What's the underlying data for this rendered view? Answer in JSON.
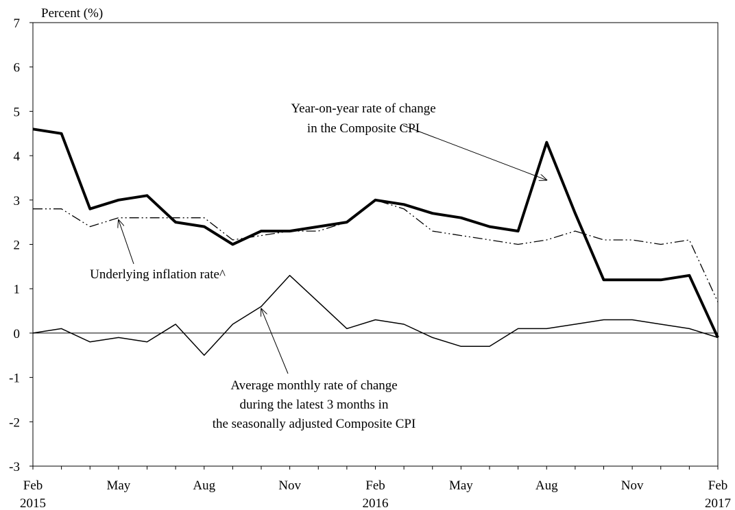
{
  "chart_data": {
    "type": "line",
    "ylabel": "Percent (%)",
    "ylim": [
      -3,
      7
    ],
    "yticks": [
      -3,
      -2,
      -1,
      0,
      1,
      2,
      3,
      4,
      5,
      6,
      7
    ],
    "grid": false,
    "x": [
      "Feb 2015",
      "Mar 2015",
      "Apr 2015",
      "May 2015",
      "Jun 2015",
      "Jul 2015",
      "Aug 2015",
      "Sep 2015",
      "Oct 2015",
      "Nov 2015",
      "Dec 2015",
      "Jan 2016",
      "Feb 2016",
      "Mar 2016",
      "Apr 2016",
      "May 2016",
      "Jun 2016",
      "Jul 2016",
      "Aug 2016",
      "Sep 2016",
      "Oct 2016",
      "Nov 2016",
      "Dec 2016",
      "Jan 2017",
      "Feb 2017"
    ],
    "xtick_labels": [
      {
        "index": 0,
        "month": "Feb",
        "year": "2015"
      },
      {
        "index": 3,
        "month": "May",
        "year": ""
      },
      {
        "index": 6,
        "month": "Aug",
        "year": ""
      },
      {
        "index": 9,
        "month": "Nov",
        "year": ""
      },
      {
        "index": 12,
        "month": "Feb",
        "year": "2016"
      },
      {
        "index": 15,
        "month": "May",
        "year": ""
      },
      {
        "index": 18,
        "month": "Aug",
        "year": ""
      },
      {
        "index": 21,
        "month": "Nov",
        "year": ""
      },
      {
        "index": 24,
        "month": "Feb",
        "year": "2017"
      }
    ],
    "series": [
      {
        "key": "composite",
        "values": [
          4.6,
          4.5,
          2.8,
          3.0,
          3.1,
          2.5,
          2.4,
          2.0,
          2.3,
          2.3,
          2.4,
          2.5,
          3.0,
          2.9,
          2.7,
          2.6,
          2.4,
          2.3,
          4.3,
          2.7,
          1.2,
          1.2,
          1.2,
          1.3,
          -0.1
        ],
        "style": "thick-solid"
      },
      {
        "key": "underlying",
        "values": [
          2.8,
          2.8,
          2.4,
          2.6,
          2.6,
          2.6,
          2.6,
          2.1,
          2.2,
          2.3,
          2.3,
          2.5,
          3.0,
          2.8,
          2.3,
          2.2,
          2.1,
          2.0,
          2.1,
          2.3,
          2.1,
          2.1,
          2.0,
          2.1,
          0.7
        ],
        "style": "dash-dot-dot"
      },
      {
        "key": "monthly",
        "values": [
          0.0,
          0.1,
          -0.2,
          -0.1,
          -0.2,
          0.2,
          -0.5,
          0.2,
          0.6,
          1.3,
          0.7,
          0.1,
          0.3,
          0.2,
          -0.1,
          -0.3,
          -0.3,
          0.1,
          0.1,
          0.2,
          0.3,
          0.3,
          0.2,
          0.1,
          -0.1
        ],
        "style": "thin-solid"
      }
    ],
    "annotations": [
      {
        "key": "composite",
        "lines": [
          "Year-on-year rate of change",
          "in the Composite CPI"
        ],
        "target_index": 18,
        "target_value": 3.45
      },
      {
        "key": "underlying",
        "lines": [
          "Underlying inflation rate^"
        ],
        "target_index": 3,
        "target_value": 2.55
      },
      {
        "key": "monthly",
        "lines": [
          "Average monthly rate of change",
          "during the latest 3 months in",
          "the seasonally adjusted Composite CPI"
        ],
        "target_index": 8,
        "target_value": 0.55
      }
    ],
    "colors": {
      "line": "#000000",
      "background": "#ffffff"
    }
  }
}
